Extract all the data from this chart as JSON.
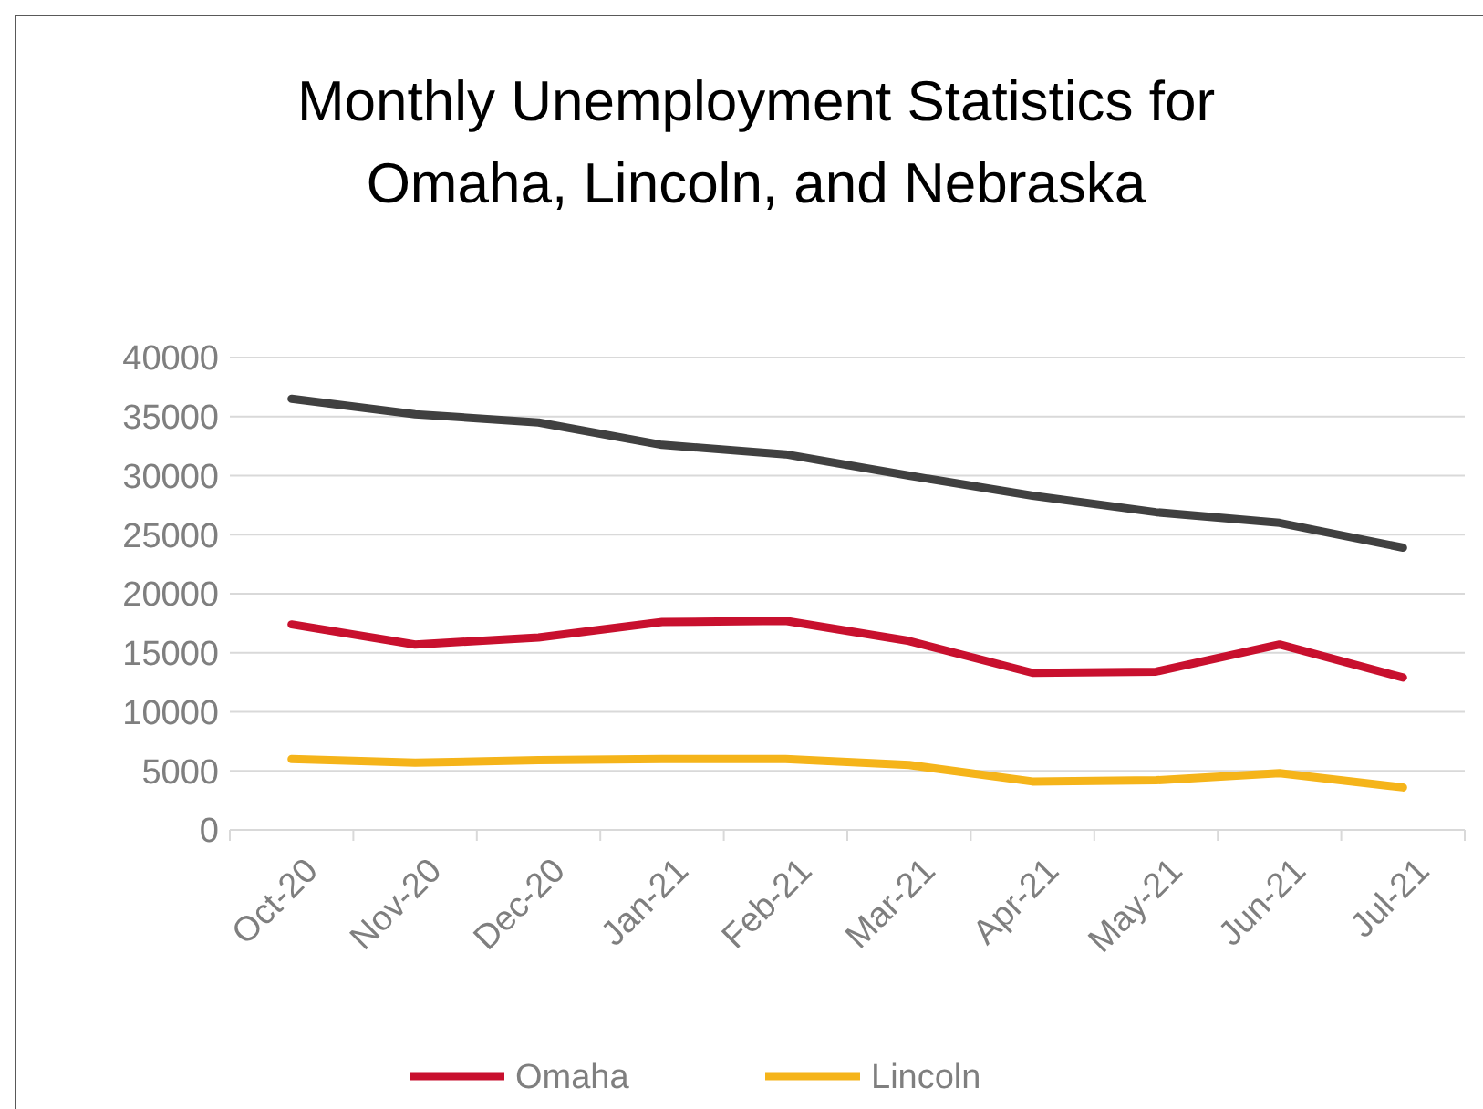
{
  "chart_data": {
    "type": "line",
    "title": "Monthly Unemployment Statistics for Omaha, Lincoln, and Nebraska",
    "categories": [
      "Oct-20",
      "Nov-20",
      "Dec-20",
      "Jan-21",
      "Feb-21",
      "Mar-21",
      "Apr-21",
      "May-21",
      "Jun-21",
      "Jul-21"
    ],
    "series": [
      {
        "color": "#404040",
        "values": [
          36500,
          35200,
          34500,
          32600,
          31800,
          30000,
          28300,
          26900,
          26000,
          23900
        ]
      },
      {
        "name": "Omaha",
        "color": "#c8102e",
        "values": [
          17400,
          15700,
          16300,
          17600,
          17700,
          16000,
          13300,
          13400,
          15700,
          12900
        ]
      },
      {
        "name": "Lincoln",
        "color": "#f5b41a",
        "values": [
          6000,
          5700,
          5900,
          6000,
          6000,
          5500,
          4100,
          4200,
          4800,
          3600
        ]
      }
    ],
    "ylim": [
      0,
      40000
    ],
    "yticks": [
      0,
      5000,
      10000,
      15000,
      20000,
      25000,
      30000,
      35000,
      40000
    ],
    "grid": "y",
    "legend": "bottom",
    "marker": "none",
    "line_style": "solid"
  }
}
